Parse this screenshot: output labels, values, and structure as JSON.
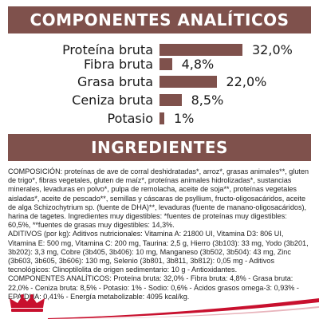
{
  "analytics": {
    "title": "COMPONENTES ANALÍTICOS",
    "bar_color": "#7f514c",
    "items": [
      {
        "label": "Proteína bruta",
        "value_text": "32,0%",
        "value": 32.0
      },
      {
        "label": "Fibra bruta",
        "value_text": "4,8%",
        "value": 4.8
      },
      {
        "label": "Grasa bruta",
        "value_text": "22,0%",
        "value": 22.0
      },
      {
        "label": "Ceniza bruta",
        "value_text": "8,5%",
        "value": 8.5
      },
      {
        "label": "Potasio",
        "value_text": "1%",
        "value": 1.0
      }
    ]
  },
  "ingredients": {
    "title": "INGREDIENTES",
    "composition": "COMPOSICIÓN: proteínas de ave de corral deshidratadas*, arroz*, grasas animales**, gluten de trigo*, fibras vegetales, gluten de maíz*, proteínas animales hidrolizadas*, sustancias minerales, levaduras en polvo*, pulpa de remolacha, aceite de soja**, proteínas vegetales aisladas*, aceite de pescado**, semillas y cáscaras de psyllium, fructo-oligosacáridos, aceite de alga Schizochytrium sp. (fuente de DHA)**, levaduras (fuente de manano-oligosacáridos), harina de tagetes. Ingredientes muy digestibles: *fuentes de proteínas muy digestibles: 60,5%, **fuentes de grasas muy digestibles: 14,3%.",
    "additives": "ADITIVOS (por kg): Aditivos nutricionales: Vitamina A: 21800 UI, Vitamina D3: 806 UI, Vitamina E: 500 mg, Vitamina C: 200 mg, Taurina: 2,5 g, Hierro (3b103): 33 mg, Yodo (3b201, 3b202): 3,3 mg, Cobre (3b405, 3b406): 10 mg, Manganeso (3b502, 3b504): 43 mg, Zinc (3b603, 3b605, 3b606): 130 mg, Selenio (3b801, 3b811, 3b812): 0,05 mg - Aditivos tecnológicos: Clinoptilolita de origen sedimentario: 10 g - Antioxidantes.",
    "components": "COMPONENTES ANALÍTICOS: Proteína bruta: 32,0% - Fibra bruta: 4,8% - Grasa bruta: 22,0% - Ceniza bruta: 8,5% - Potasio: 1% - Sodio: 0,6% - Ácidos grasos omega-3: 0,93% - EPA/DHA: 0,41% - Energía metabolizable: 4095 kcal/kg."
  },
  "brand": {
    "logo_icon": "crown-icon",
    "accent": "#c8102e"
  }
}
